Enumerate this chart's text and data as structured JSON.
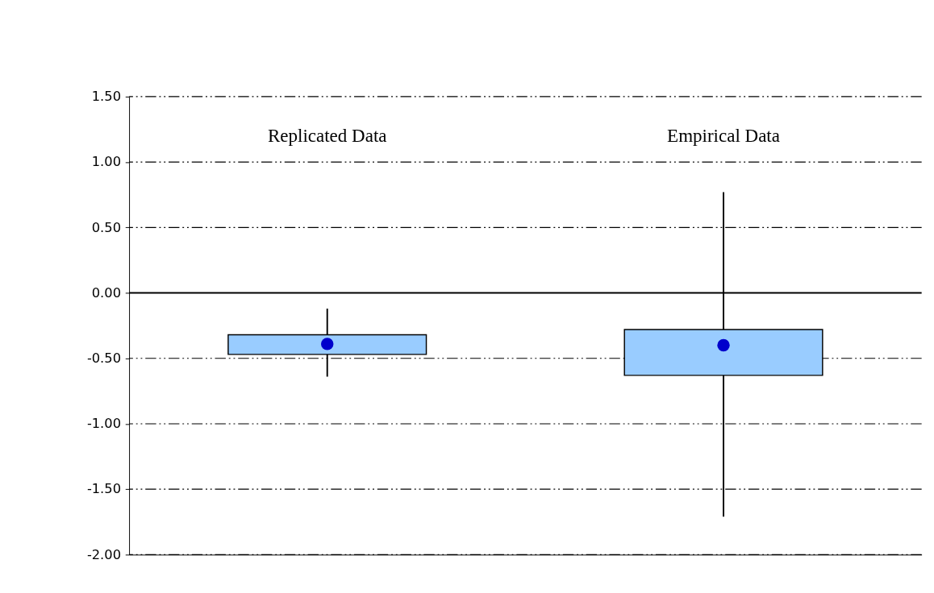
{
  "chart_data": {
    "type": "box",
    "categories": [
      "Replicated Data",
      "Empirical Data"
    ],
    "boxes": [
      {
        "low": -0.64,
        "q1": -0.47,
        "median": -0.39,
        "q3": -0.32,
        "high": -0.12
      },
      {
        "low": -1.71,
        "q1": -0.63,
        "median": -0.4,
        "q3": -0.28,
        "high": 0.77
      }
    ],
    "color": "#99ccff",
    "marker": "circle",
    "ylim": [
      -2.0,
      1.5
    ],
    "yticks": [
      {
        "value": -2.0,
        "label": "-2.00"
      },
      {
        "value": -1.5,
        "label": "-1.50"
      },
      {
        "value": -1.0,
        "label": "-1.00"
      },
      {
        "value": -0.5,
        "label": "-0.50"
      },
      {
        "value": 0.0,
        "label": "0.00"
      },
      {
        "value": 0.5,
        "label": "0.50"
      },
      {
        "value": 1.0,
        "label": "1.00"
      },
      {
        "value": 1.5,
        "label": "1.50"
      }
    ],
    "grid": "y",
    "ref_lines": [
      {
        "axis": "y",
        "value": 0.0,
        "color": "#000000",
        "line_style": "solid"
      }
    ]
  }
}
